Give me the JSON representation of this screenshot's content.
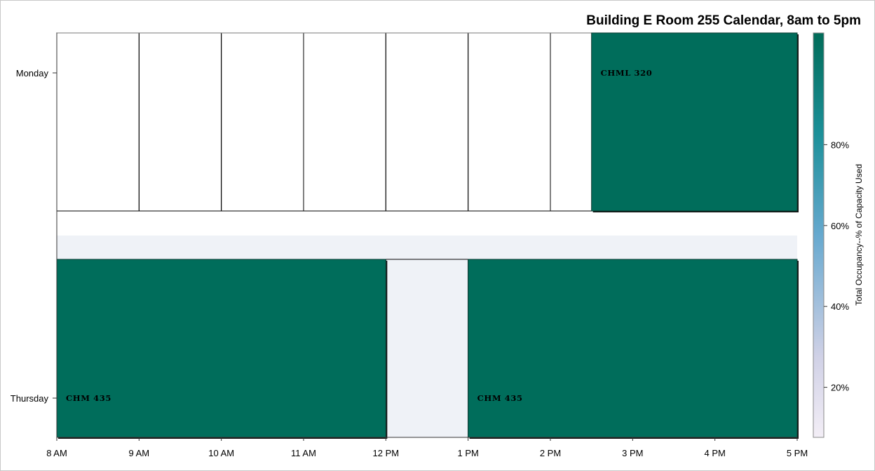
{
  "chart_data": {
    "type": "heatmap",
    "title": "Building E Room 255 Calendar, 8am to 5pm",
    "x_ticks": [
      "8 AM",
      "9 AM",
      "10 AM",
      "11 AM",
      "12 PM",
      "1 PM",
      "2 PM",
      "3 PM",
      "4 PM",
      "5 PM"
    ],
    "xlim": [
      8,
      17
    ],
    "y_categories": [
      "Monday",
      "Thursday"
    ],
    "grid": true,
    "events": [
      {
        "day": "Monday",
        "course": "CHML 320",
        "start": 14.5,
        "end": 17
      },
      {
        "day": "Thursday",
        "course": "CHM 435",
        "start": 8,
        "end": 12
      },
      {
        "day": "Thursday",
        "course": "CHM 435",
        "start": 13,
        "end": 17
      }
    ],
    "colorbar": {
      "label": "Total Occupancy--% of Capacity Used",
      "ticks": [
        "20%",
        "40%",
        "60%",
        "80%"
      ],
      "tick_values": [
        20,
        40,
        60,
        80
      ],
      "range": [
        0,
        100
      ],
      "legend_placement": "right"
    },
    "colors": {
      "event_fill": "#006d5b",
      "thursday_band": "#eff2f7",
      "grid": "#000000",
      "colorbar_low": "#f3eef6",
      "colorbar_mid": "#67a9cf",
      "colorbar_high": "#016c59"
    }
  }
}
